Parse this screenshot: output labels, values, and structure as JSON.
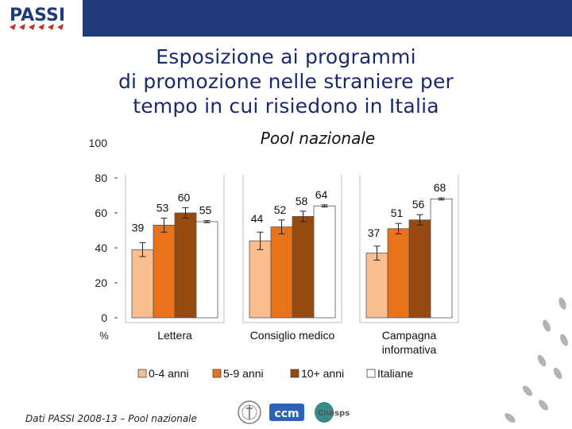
{
  "header": {
    "logo_text": "PASSI"
  },
  "title_lines": [
    "Esposizione ai programmi",
    "di promozione nelle straniere per",
    "tempo in cui risiedono in Italia"
  ],
  "subtitle": "Pool nazionale",
  "footer": {
    "source": "Dati PASSI 2008-13 – Pool nazionale"
  },
  "partners": {
    "logo_2": "ccm",
    "logo_3": "Cnesps"
  },
  "colors": {
    "header_bar": "#1f3b7a",
    "series": [
      "#f9be8e",
      "#e8731a",
      "#974a10",
      "#ffffff"
    ]
  },
  "chart_data": {
    "type": "bar",
    "title": "Pool nazionale",
    "xlabel": "",
    "ylabel": "%",
    "ylim": [
      0,
      100
    ],
    "yticks": [
      0,
      20,
      40,
      60,
      80,
      100
    ],
    "categories": [
      "Lettera",
      "Consiglio medico",
      "Campagna informativa"
    ],
    "category_lines": [
      [
        "Lettera"
      ],
      [
        "Consiglio medico"
      ],
      [
        "Campagna",
        "informativa"
      ]
    ],
    "series": [
      {
        "name": "0-4 anni",
        "values": [
          39,
          44,
          37
        ],
        "errors": [
          4,
          5,
          4
        ]
      },
      {
        "name": "5-9 anni",
        "values": [
          53,
          52,
          51
        ],
        "errors": [
          4,
          4,
          3
        ]
      },
      {
        "name": "10+ anni",
        "values": [
          60,
          58,
          56
        ],
        "errors": [
          3,
          3,
          3
        ]
      },
      {
        "name": "Italiane",
        "values": [
          55,
          64,
          68
        ],
        "errors": [
          0.6,
          0.6,
          0.6
        ]
      }
    ],
    "legend_position": "bottom"
  }
}
